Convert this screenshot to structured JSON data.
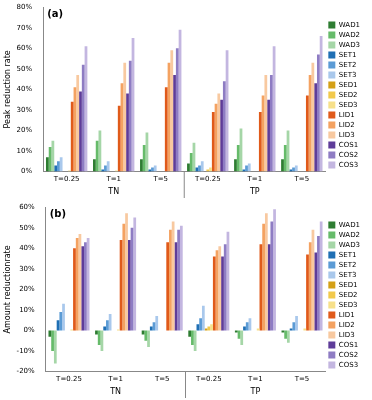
{
  "chart_data": [
    {
      "type": "bar",
      "title": "(a)",
      "y_label": "Peak reduction rate",
      "categories": [
        "T=0.25",
        "T=1",
        "T=5",
        "T=0.25",
        "T=1",
        "T=5"
      ],
      "group_labels": [
        "TN",
        "TP"
      ],
      "ylim": [
        0,
        80
      ],
      "yticks": [
        {
          "value": 0,
          "label": "0%"
        },
        {
          "value": 10,
          "label": "10%"
        },
        {
          "value": 20,
          "label": "20%"
        },
        {
          "value": 30,
          "label": "30%"
        },
        {
          "value": 40,
          "label": "40%"
        },
        {
          "value": 50,
          "label": "50%"
        },
        {
          "value": 60,
          "label": "60%"
        },
        {
          "value": 70,
          "label": "70%"
        },
        {
          "value": 80,
          "label": "80%"
        }
      ],
      "grid": false,
      "legend": "right",
      "series": [
        {
          "name": "WAD1",
          "color": "#2e7d32",
          "values": [
            7,
            6,
            6,
            4,
            6,
            6
          ]
        },
        {
          "name": "WAD2",
          "color": "#66bb6a",
          "values": [
            12,
            15,
            13,
            9,
            13,
            13
          ]
        },
        {
          "name": "WAD3",
          "color": "#a5d6a7",
          "values": [
            15,
            20,
            19,
            14,
            21,
            20
          ]
        },
        {
          "name": "SET1",
          "color": "#1f6fb4",
          "values": [
            3,
            1,
            1,
            2,
            1,
            1
          ]
        },
        {
          "name": "SET2",
          "color": "#5b9bd5",
          "values": [
            5,
            3,
            2,
            3,
            3,
            2
          ]
        },
        {
          "name": "SET3",
          "color": "#a9c8ec",
          "values": [
            7,
            5,
            3,
            5,
            4,
            3
          ]
        },
        {
          "name": "SED1",
          "color": "#d4a017",
          "values": [
            0,
            0,
            0,
            0,
            0,
            0
          ]
        },
        {
          "name": "SED2",
          "color": "#f2c94c",
          "values": [
            0,
            0,
            0,
            1,
            0,
            0
          ]
        },
        {
          "name": "SED3",
          "color": "#f7e08a",
          "values": [
            0.5,
            0.5,
            0,
            2,
            0,
            0
          ]
        },
        {
          "name": "LID1",
          "color": "#e05a1a",
          "values": [
            34,
            32,
            41,
            29,
            29,
            37
          ]
        },
        {
          "name": "LID2",
          "color": "#f4a261",
          "values": [
            41,
            43,
            53,
            33,
            37,
            47
          ]
        },
        {
          "name": "LID3",
          "color": "#f8c9a0",
          "values": [
            47,
            53,
            59,
            38,
            47,
            53
          ]
        },
        {
          "name": "COS1",
          "color": "#5e3c99",
          "values": [
            39,
            38,
            47,
            35,
            35,
            43
          ]
        },
        {
          "name": "COS2",
          "color": "#8e7cc3",
          "values": [
            52,
            54,
            60,
            44,
            47,
            57
          ]
        },
        {
          "name": "COS3",
          "color": "#c3b6e0",
          "values": [
            61,
            65,
            69,
            59,
            61,
            66
          ]
        }
      ]
    },
    {
      "type": "bar",
      "title": "(b)",
      "y_label": "Amount reductionrate",
      "categories": [
        "T=0.25",
        "T=1",
        "T=5",
        "T=0.25",
        "T=1",
        "T=5"
      ],
      "group_labels": [
        "TN",
        "TP"
      ],
      "ylim": [
        -20,
        60
      ],
      "yticks": [
        {
          "value": -20,
          "label": "-20%"
        },
        {
          "value": -10,
          "label": "-10%"
        },
        {
          "value": 0,
          "label": "0%"
        },
        {
          "value": 10,
          "label": "10%"
        },
        {
          "value": 20,
          "label": "20%"
        },
        {
          "value": 30,
          "label": "30%"
        },
        {
          "value": 40,
          "label": "40%"
        },
        {
          "value": 50,
          "label": "50%"
        },
        {
          "value": 60,
          "label": "60%"
        }
      ],
      "grid": false,
      "legend": "right",
      "series": [
        {
          "name": "WAD1",
          "color": "#2e7d32",
          "values": [
            -3,
            -2,
            -2,
            -3,
            -1,
            -1
          ]
        },
        {
          "name": "WAD2",
          "color": "#66bb6a",
          "values": [
            -10,
            -7,
            -5,
            -7,
            -4,
            -4
          ]
        },
        {
          "name": "WAD3",
          "color": "#a5d6a7",
          "values": [
            -16,
            -10,
            -8,
            -10,
            -7,
            -6
          ]
        },
        {
          "name": "SET1",
          "color": "#1f6fb4",
          "values": [
            5,
            2,
            2,
            3,
            2,
            1
          ]
        },
        {
          "name": "SET2",
          "color": "#5b9bd5",
          "values": [
            9,
            5,
            4,
            6,
            4,
            4
          ]
        },
        {
          "name": "SET3",
          "color": "#a9c8ec",
          "values": [
            13,
            8,
            7,
            12,
            6,
            7
          ]
        },
        {
          "name": "SED1",
          "color": "#d4a017",
          "values": [
            0,
            0,
            0,
            1,
            0,
            0
          ]
        },
        {
          "name": "SED2",
          "color": "#f2c94c",
          "values": [
            0,
            0,
            0,
            2,
            0,
            0
          ]
        },
        {
          "name": "SED3",
          "color": "#f7e08a",
          "values": [
            0.5,
            0.5,
            0,
            3,
            1,
            1
          ]
        },
        {
          "name": "LID1",
          "color": "#e05a1a",
          "values": [
            40,
            44,
            43,
            36,
            42,
            37
          ]
        },
        {
          "name": "LID2",
          "color": "#f4a261",
          "values": [
            45,
            52,
            49,
            39,
            52,
            43
          ]
        },
        {
          "name": "LID3",
          "color": "#f8c9a0",
          "values": [
            47,
            57,
            53,
            41,
            57,
            49
          ]
        },
        {
          "name": "COS1",
          "color": "#5e3c99",
          "values": [
            41,
            44,
            43,
            36,
            42,
            38
          ]
        },
        {
          "name": "COS2",
          "color": "#8e7cc3",
          "values": [
            43,
            50,
            49,
            42,
            53,
            46
          ]
        },
        {
          "name": "COS3",
          "color": "#c3b6e0",
          "values": [
            45,
            55,
            51,
            48,
            59,
            53
          ]
        }
      ]
    }
  ]
}
